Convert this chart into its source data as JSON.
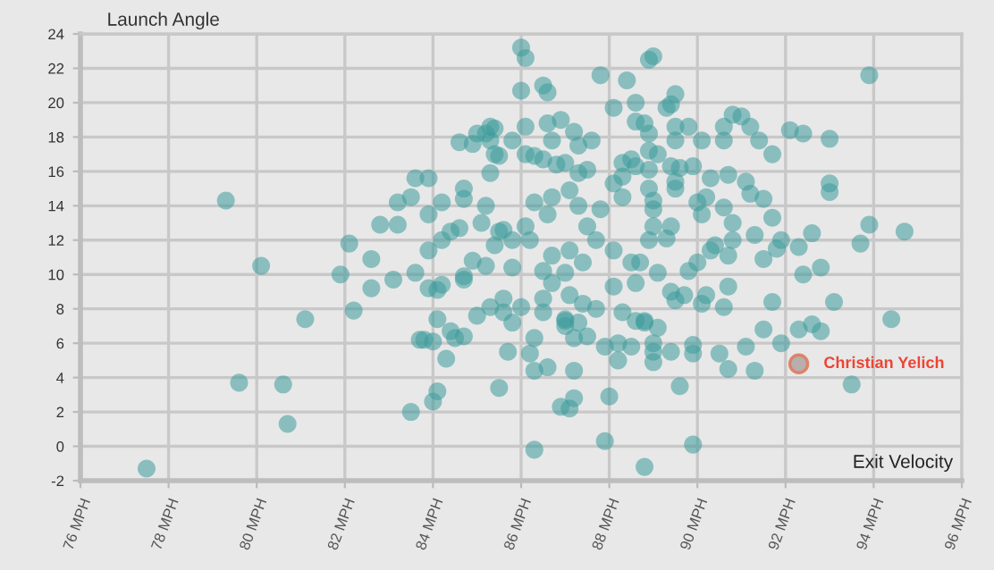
{
  "chart_data": {
    "type": "scatter",
    "xlabel": "Exit Velocity",
    "ylabel": "Launch Angle",
    "xlim": [
      76,
      96
    ],
    "xticks": [
      {
        "value": 76,
        "label": "76 MPH"
      },
      {
        "value": 78,
        "label": "78 MPH"
      },
      {
        "value": 80,
        "label": "80 MPH"
      },
      {
        "value": 82,
        "label": "82 MPH"
      },
      {
        "value": 84,
        "label": "84 MPH"
      },
      {
        "value": 86,
        "label": "86 MPH"
      },
      {
        "value": 88,
        "label": "88 MPH"
      },
      {
        "value": 90,
        "label": "90 MPH"
      },
      {
        "value": 92,
        "label": "92 MPH"
      },
      {
        "value": 94,
        "label": "94 MPH"
      },
      {
        "value": 96,
        "label": "96 MPH"
      }
    ],
    "ylim": [
      -2,
      24
    ],
    "yticks": [
      -2,
      0,
      2,
      4,
      6,
      8,
      10,
      12,
      14,
      16,
      18,
      20,
      22,
      24
    ],
    "grid": true,
    "marker": "circle",
    "annotations": [
      {
        "text": "Christian Yelich",
        "x": 92.3,
        "y": 4.8
      }
    ],
    "series": [
      {
        "color": "#3d9a9b",
        "x": [
          77.5,
          79.3,
          79.6,
          80.1,
          80.6,
          80.7,
          81.1,
          81.9,
          82.1,
          82.2,
          82.6,
          82.6,
          82.8,
          83.2,
          83.1,
          83.2,
          83.5,
          83.6,
          83.9,
          83.9,
          83.9,
          83.6,
          84.2,
          84.2,
          84.4,
          84.6,
          84.6,
          84.9,
          85.0,
          85.2,
          85.3,
          85.3,
          85.4,
          85.3,
          84.7,
          84.7,
          85.2,
          85.1,
          85.6,
          84.9,
          85.2,
          85.4,
          84.7,
          83.5,
          84.0,
          84.1,
          84.3,
          83.7,
          83.8,
          84.0,
          84.1,
          84.4,
          84.5,
          84.7,
          85.0,
          85.3,
          83.9,
          84.1,
          84.2,
          84.7,
          85.6,
          85.5,
          86.0,
          86.1,
          86.0,
          86.5,
          86.6,
          87.8,
          88.4,
          88.9,
          89.0,
          93.9,
          89.5,
          88.6,
          88.1,
          89.3,
          89.4,
          90.8,
          91.0,
          92.1,
          92.4,
          93.0,
          91.7,
          91.2,
          91.4,
          90.6,
          90.6,
          90.1,
          89.8,
          89.5,
          89.5,
          88.6,
          88.8,
          88.9,
          88.9,
          89.1,
          86.1,
          85.4,
          86.9,
          86.6,
          86.7,
          87.2,
          87.3,
          87.6,
          86.1,
          85.8,
          86.3,
          86.5,
          86.8,
          87.0,
          85.5,
          87.3,
          87.5,
          88.3,
          88.5,
          88.3,
          88.6,
          88.9,
          89.4,
          89.6,
          89.9,
          89.5,
          89.5,
          88.9,
          89.0,
          90.3,
          90.7,
          91.1,
          91.2,
          91.5,
          91.7,
          93.0,
          93.0,
          93.9,
          94.7,
          93.7,
          92.6,
          92.3,
          91.9,
          91.8,
          91.5,
          91.3,
          90.8,
          90.8,
          90.7,
          90.6,
          90.0,
          90.1,
          90.2,
          90.4,
          90.3,
          90.0,
          89.8,
          89.4,
          89.3,
          89.0,
          89.0,
          88.3,
          88.1,
          87.8,
          87.5,
          87.3,
          87.1,
          86.7,
          86.6,
          86.3,
          86.1,
          85.8,
          85.5,
          86.2,
          86.7,
          87.1,
          87.7,
          88.1,
          88.5,
          88.9,
          88.7,
          89.1,
          87.4,
          87.0,
          86.5,
          85.8,
          92.4,
          92.8,
          94.4,
          93.5,
          92.3,
          92.6,
          92.8,
          93.1,
          91.9,
          91.5,
          91.7,
          91.1,
          91.3,
          90.7,
          90.5,
          89.9,
          89.9,
          89.6,
          89.9,
          88.8,
          87.9,
          88.0,
          88.2,
          88.5,
          88.2,
          89.0,
          89.0,
          89.0,
          89.4,
          89.1,
          88.8,
          88.6,
          87.5,
          87.2,
          87.0,
          87.9,
          87.2,
          86.9,
          87.1,
          87.2,
          86.3,
          86.6,
          86.3,
          86.2,
          85.7,
          86.3,
          85.8,
          87.0,
          87.0,
          87.3,
          87.7,
          88.3,
          88.8,
          89.4,
          89.5,
          89.7,
          90.1,
          90.2,
          90.6,
          90.7,
          86.5,
          86.5,
          86.0,
          85.6,
          86.7,
          87.1,
          87.4,
          88.1,
          88.6
        ],
        "values": [
          -1.3,
          14.3,
          3.7,
          10.5,
          3.6,
          1.3,
          7.4,
          10.0,
          11.8,
          7.9,
          9.2,
          10.9,
          12.9,
          12.9,
          9.7,
          14.2,
          14.5,
          15.6,
          15.6,
          13.5,
          11.4,
          10.1,
          14.2,
          12.0,
          12.5,
          12.7,
          17.7,
          17.6,
          18.2,
          18.2,
          18.6,
          17.8,
          17.0,
          15.9,
          15.0,
          14.4,
          14.0,
          13.0,
          12.6,
          10.8,
          10.5,
          11.7,
          9.9,
          2.0,
          2.6,
          3.2,
          5.1,
          6.2,
          6.2,
          6.1,
          7.4,
          6.7,
          6.3,
          6.4,
          7.6,
          8.1,
          9.2,
          9.1,
          9.4,
          9.7,
          7.8,
          3.4,
          23.2,
          22.6,
          20.7,
          21.0,
          20.6,
          21.6,
          21.3,
          22.5,
          22.7,
          21.6,
          20.5,
          20.0,
          19.7,
          19.7,
          19.9,
          19.3,
          19.2,
          18.4,
          18.2,
          17.9,
          17.0,
          18.6,
          17.8,
          18.6,
          17.8,
          17.8,
          18.6,
          18.6,
          17.8,
          18.9,
          18.8,
          18.2,
          17.2,
          17.0,
          18.6,
          18.5,
          19.0,
          18.8,
          17.8,
          18.3,
          17.5,
          17.8,
          17.0,
          17.8,
          16.9,
          16.7,
          16.4,
          16.5,
          16.9,
          15.9,
          16.1,
          16.5,
          16.7,
          15.7,
          16.3,
          16.1,
          16.3,
          16.2,
          16.3,
          15.4,
          15.0,
          15.0,
          14.3,
          15.6,
          15.8,
          15.4,
          14.7,
          14.4,
          13.3,
          15.3,
          14.8,
          12.9,
          12.5,
          11.8,
          12.4,
          11.6,
          12.0,
          11.5,
          10.9,
          12.3,
          13.0,
          12.0,
          11.1,
          13.9,
          14.2,
          13.5,
          14.5,
          11.7,
          11.4,
          10.7,
          10.2,
          12.8,
          12.1,
          13.8,
          12.8,
          14.5,
          15.3,
          13.8,
          12.8,
          14.0,
          14.9,
          14.5,
          13.5,
          14.2,
          12.8,
          12.0,
          12.5,
          12.0,
          11.1,
          11.4,
          12.0,
          11.4,
          10.7,
          12.0,
          10.7,
          10.1,
          10.7,
          10.1,
          10.2,
          10.4,
          10.0,
          10.4,
          7.4,
          3.6,
          6.8,
          7.1,
          6.7,
          8.4,
          6.0,
          6.8,
          8.4,
          5.8,
          4.4,
          4.5,
          5.4,
          5.9,
          5.4,
          3.5,
          0.1,
          -1.2,
          0.3,
          2.9,
          5.0,
          5.8,
          6.0,
          6.0,
          5.5,
          4.9,
          5.5,
          6.9,
          7.2,
          7.3,
          6.4,
          6.3,
          7.3,
          5.8,
          4.4,
          2.3,
          2.2,
          2.8,
          -0.2,
          4.6,
          4.4,
          5.4,
          5.5,
          6.3,
          7.2,
          7.4,
          7.0,
          7.2,
          8.0,
          7.8,
          7.3,
          9.0,
          8.5,
          8.8,
          8.3,
          8.8,
          8.1,
          9.3,
          8.6,
          7.8,
          8.1,
          8.6,
          9.5,
          8.8,
          8.3,
          9.3,
          9.5
        ]
      },
      {
        "color": "#b3a8a5",
        "x": [
          92.3
        ],
        "values": [
          4.8
        ]
      }
    ]
  }
}
